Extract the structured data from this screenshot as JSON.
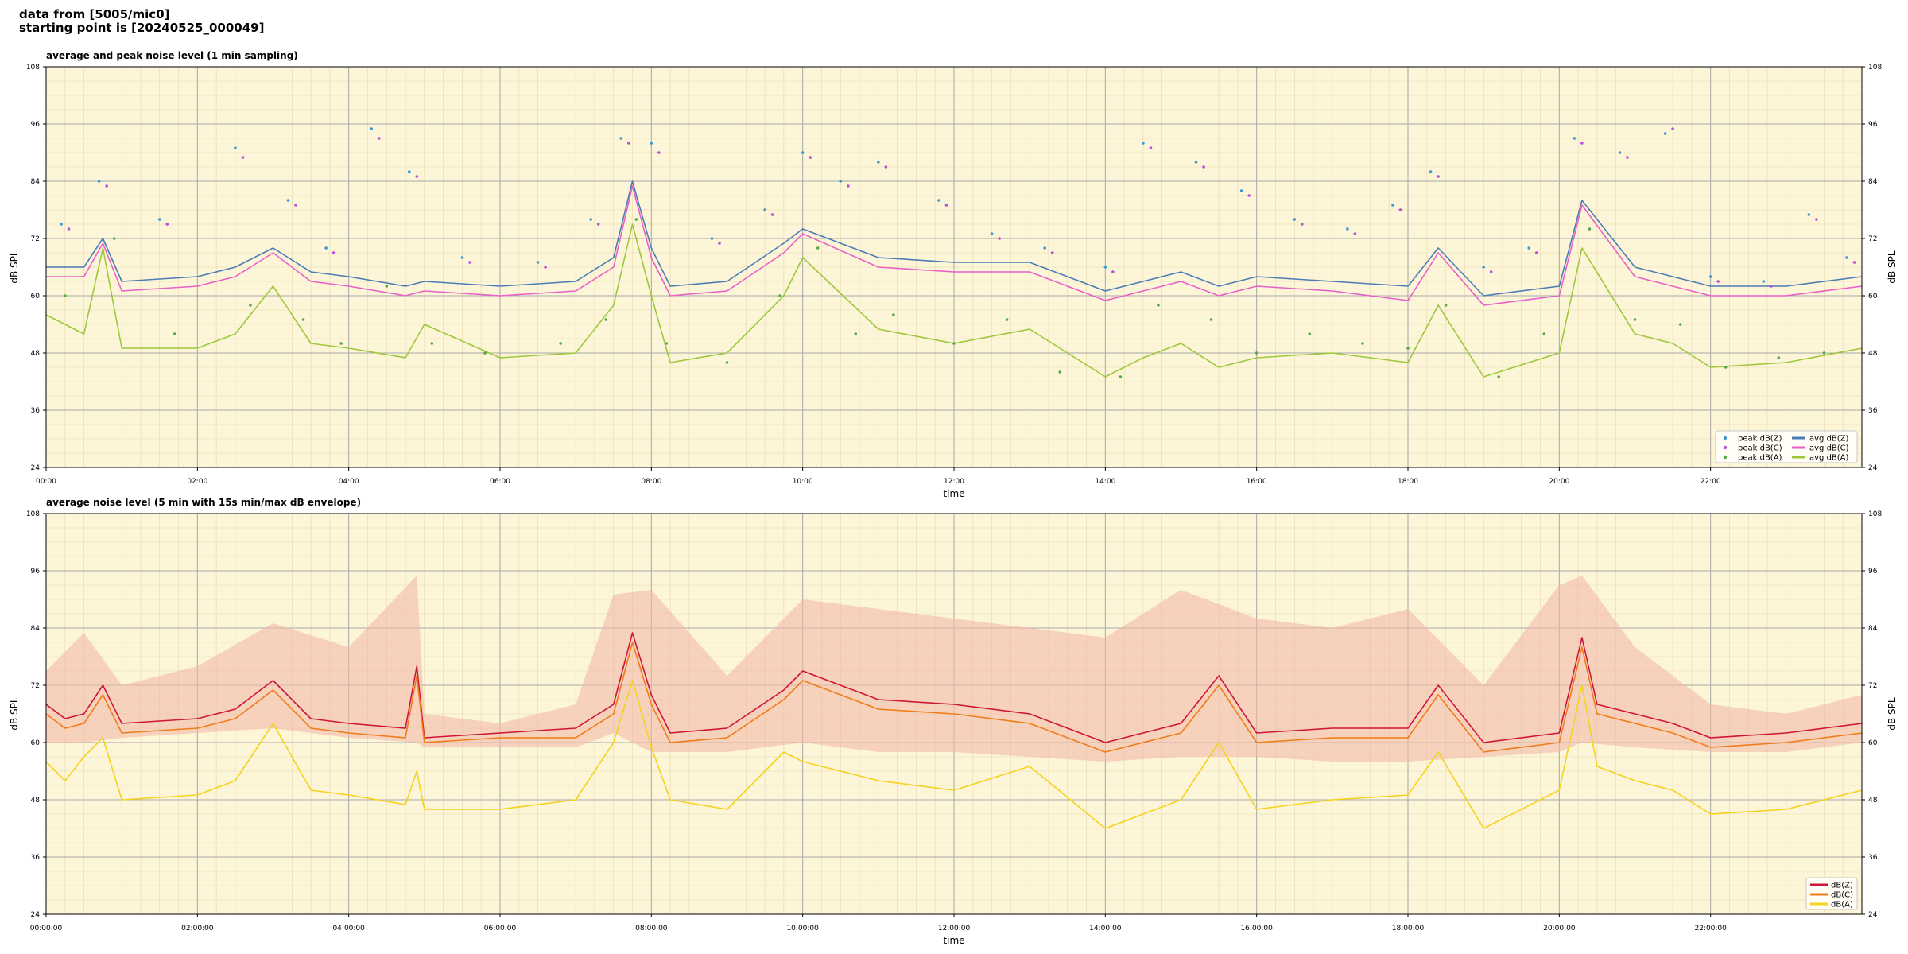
{
  "header": {
    "line1": "data from [5005/mic0]",
    "line2": "starting point is [20240525_000049]"
  },
  "chart_data": [
    {
      "type": "scatter+line",
      "title": "average and peak noise level (1 min sampling)",
      "xlabel": "time",
      "ylabel": "dB SPL",
      "ylabel_right": "dB SPL",
      "xlim_hours": [
        0,
        24
      ],
      "ylim": [
        24,
        108
      ],
      "yticks": [
        24,
        36,
        48,
        60,
        72,
        84,
        96,
        108
      ],
      "xticks": [
        "00:00",
        "02:00",
        "04:00",
        "06:00",
        "08:00",
        "10:00",
        "12:00",
        "14:00",
        "16:00",
        "18:00",
        "20:00",
        "22:00"
      ],
      "grid": true,
      "background": "#fdf5d8",
      "legend_placement": "lower-right",
      "legend": [
        "peak dB(Z)",
        "peak dB(C)",
        "peak dB(A)",
        "avg dB(Z)",
        "avg dB(C)",
        "avg dB(A)"
      ],
      "series": [
        {
          "name": "avg dB(Z)",
          "kind": "line",
          "color": "#4a7db5",
          "hours": [
            0,
            0.5,
            0.75,
            1,
            2,
            2.5,
            3,
            3.5,
            4,
            4.75,
            5,
            6,
            7,
            7.5,
            7.75,
            8,
            8.25,
            9,
            9.75,
            10,
            11,
            12,
            13,
            14,
            14.5,
            15,
            15.5,
            16,
            17,
            18,
            18.4,
            19,
            20,
            20.3,
            21,
            21.5,
            22,
            23,
            24
          ],
          "values": [
            66,
            66,
            72,
            63,
            64,
            66,
            70,
            65,
            64,
            62,
            63,
            62,
            63,
            68,
            84,
            70,
            62,
            63,
            71,
            74,
            68,
            67,
            67,
            61,
            63,
            65,
            62,
            64,
            63,
            62,
            70,
            60,
            62,
            80,
            66,
            64,
            62,
            62,
            64
          ]
        },
        {
          "name": "avg dB(C)",
          "kind": "line",
          "color": "#e860c8",
          "hours": [
            0,
            0.5,
            0.75,
            1,
            2,
            2.5,
            3,
            3.5,
            4,
            4.75,
            5,
            6,
            7,
            7.5,
            7.75,
            8,
            8.25,
            9,
            9.75,
            10,
            11,
            12,
            13,
            14,
            14.5,
            15,
            15.5,
            16,
            17,
            18,
            18.4,
            19,
            20,
            20.3,
            21,
            21.5,
            22,
            23,
            24
          ],
          "values": [
            64,
            64,
            71,
            61,
            62,
            64,
            69,
            63,
            62,
            60,
            61,
            60,
            61,
            66,
            83,
            68,
            60,
            61,
            69,
            73,
            66,
            65,
            65,
            59,
            61,
            63,
            60,
            62,
            61,
            59,
            69,
            58,
            60,
            79,
            64,
            62,
            60,
            60,
            62
          ]
        },
        {
          "name": "avg dB(A)",
          "kind": "line",
          "color": "#9cc83a",
          "hours": [
            0,
            0.5,
            0.75,
            1,
            2,
            2.5,
            3,
            3.5,
            4,
            4.75,
            5,
            6,
            7,
            7.5,
            7.75,
            8,
            8.25,
            9,
            9.75,
            10,
            11,
            12,
            13,
            14,
            14.5,
            15,
            15.5,
            16,
            17,
            18,
            18.4,
            19,
            20,
            20.3,
            21,
            21.5,
            22,
            23,
            24
          ],
          "values": [
            56,
            52,
            70,
            49,
            49,
            52,
            62,
            50,
            49,
            47,
            54,
            47,
            48,
            58,
            75,
            60,
            46,
            48,
            60,
            68,
            53,
            50,
            53,
            43,
            47,
            50,
            45,
            47,
            48,
            46,
            58,
            43,
            48,
            70,
            52,
            50,
            45,
            46,
            49
          ]
        },
        {
          "name": "peak dB(Z)",
          "kind": "scatter",
          "color": "#3a9bd4",
          "hours": [
            0.2,
            0.7,
            1.5,
            2.5,
            3.2,
            3.7,
            4.3,
            4.8,
            5.5,
            6.5,
            7.2,
            7.6,
            8.0,
            8.8,
            9.5,
            10.0,
            10.5,
            11.0,
            11.8,
            12.5,
            13.2,
            14.0,
            14.5,
            15.2,
            15.8,
            16.5,
            17.2,
            17.8,
            18.3,
            19.0,
            19.6,
            20.2,
            20.8,
            21.4,
            22.0,
            22.7,
            23.3,
            23.8
          ],
          "values": [
            75,
            84,
            76,
            91,
            80,
            70,
            95,
            86,
            68,
            67,
            76,
            93,
            92,
            72,
            78,
            90,
            84,
            88,
            80,
            73,
            70,
            66,
            92,
            88,
            82,
            76,
            74,
            79,
            86,
            66,
            70,
            93,
            90,
            94,
            64,
            63,
            77,
            68
          ]
        },
        {
          "name": "peak dB(C)",
          "kind": "scatter",
          "color": "#b84fd8",
          "hours": [
            0.3,
            0.8,
            1.6,
            2.6,
            3.3,
            3.8,
            4.4,
            4.9,
            5.6,
            6.6,
            7.3,
            7.7,
            8.1,
            8.9,
            9.6,
            10.1,
            10.6,
            11.1,
            11.9,
            12.6,
            13.3,
            14.1,
            14.6,
            15.3,
            15.9,
            16.6,
            17.3,
            17.9,
            18.4,
            19.1,
            19.7,
            20.3,
            20.9,
            21.5,
            22.1,
            22.8,
            23.4,
            23.9
          ],
          "values": [
            74,
            83,
            75,
            89,
            79,
            69,
            93,
            85,
            67,
            66,
            75,
            92,
            90,
            71,
            77,
            89,
            83,
            87,
            79,
            72,
            69,
            65,
            91,
            87,
            81,
            75,
            73,
            78,
            85,
            65,
            69,
            92,
            89,
            95,
            63,
            62,
            76,
            67
          ]
        },
        {
          "name": "peak dB(A)",
          "kind": "scatter",
          "color": "#5aa845",
          "hours": [
            0.25,
            0.9,
            1.7,
            2.7,
            3.4,
            3.9,
            4.5,
            5.1,
            5.8,
            6.8,
            7.4,
            7.8,
            8.2,
            9.0,
            9.7,
            10.2,
            10.7,
            11.2,
            12.0,
            12.7,
            13.4,
            14.2,
            14.7,
            15.4,
            16.0,
            16.7,
            17.4,
            18.0,
            18.5,
            19.2,
            19.8,
            20.4,
            21.0,
            21.6,
            22.2,
            22.9,
            23.5
          ],
          "values": [
            60,
            72,
            52,
            58,
            55,
            50,
            62,
            50,
            48,
            50,
            55,
            76,
            50,
            46,
            60,
            70,
            52,
            56,
            50,
            55,
            44,
            43,
            58,
            55,
            48,
            52,
            50,
            49,
            58,
            43,
            52,
            74,
            55,
            54,
            45,
            47,
            48
          ]
        }
      ]
    },
    {
      "type": "line+envelope",
      "title": "average noise level (5 min with 15s min/max dB envelope)",
      "xlabel": "time",
      "ylabel": "dB SPL",
      "ylabel_right": "dB SPL",
      "xlim_hours": [
        0,
        24
      ],
      "ylim": [
        24,
        108
      ],
      "yticks": [
        24,
        36,
        48,
        60,
        72,
        84,
        96,
        108
      ],
      "xticks": [
        "00:00:00",
        "02:00:00",
        "04:00:00",
        "06:00:00",
        "08:00:00",
        "10:00:00",
        "12:00:00",
        "14:00:00",
        "16:00:00",
        "18:00:00",
        "20:00:00",
        "22:00:00"
      ],
      "grid": true,
      "background": "#fdf5d8",
      "legend_placement": "lower-right",
      "legend": [
        "dB(Z)",
        "dB(C)",
        "dB(A)"
      ],
      "envelope": {
        "color": "#f2b9a8",
        "hours": [
          0,
          0.5,
          1,
          2,
          3,
          4,
          4.9,
          5,
          6,
          7,
          7.5,
          8,
          9,
          10,
          11,
          12,
          13,
          14,
          15,
          16,
          17,
          18,
          19,
          20,
          20.3,
          21,
          22,
          23,
          24
        ],
        "min": [
          60,
          60,
          61,
          62,
          63,
          61,
          60,
          59,
          59,
          59,
          62,
          58,
          58,
          60,
          58,
          58,
          57,
          56,
          57,
          57,
          56,
          56,
          57,
          58,
          60,
          59,
          58,
          58,
          60
        ],
        "max": [
          75,
          83,
          72,
          76,
          85,
          80,
          95,
          66,
          64,
          68,
          91,
          92,
          74,
          90,
          88,
          86,
          84,
          82,
          92,
          86,
          84,
          88,
          72,
          93,
          95,
          80,
          68,
          66,
          70
        ]
      },
      "series": [
        {
          "name": "dB(Z)",
          "kind": "line",
          "color": "#d0153a",
          "hours": [
            0,
            0.25,
            0.5,
            0.75,
            1,
            2,
            2.5,
            3,
            3.5,
            4,
            4.75,
            4.9,
            5,
            6,
            7,
            7.5,
            7.75,
            8,
            8.25,
            9,
            9.75,
            10,
            11,
            12,
            13,
            14,
            15,
            15.5,
            16,
            17,
            18,
            18.4,
            19,
            20,
            20.3,
            20.5,
            21,
            21.5,
            22,
            23,
            24
          ],
          "values": [
            68,
            65,
            66,
            72,
            64,
            65,
            67,
            73,
            65,
            64,
            63,
            76,
            61,
            62,
            63,
            68,
            83,
            70,
            62,
            63,
            71,
            75,
            69,
            68,
            66,
            60,
            64,
            74,
            62,
            63,
            63,
            72,
            60,
            62,
            82,
            68,
            66,
            64,
            61,
            62,
            64
          ]
        },
        {
          "name": "dB(C)",
          "kind": "line",
          "color": "#f07c18",
          "hours": [
            0,
            0.25,
            0.5,
            0.75,
            1,
            2,
            2.5,
            3,
            3.5,
            4,
            4.75,
            4.9,
            5,
            6,
            7,
            7.5,
            7.75,
            8,
            8.25,
            9,
            9.75,
            10,
            11,
            12,
            13,
            14,
            15,
            15.5,
            16,
            17,
            18,
            18.4,
            19,
            20,
            20.3,
            20.5,
            21,
            21.5,
            22,
            23,
            24
          ],
          "values": [
            66,
            63,
            64,
            70,
            62,
            63,
            65,
            71,
            63,
            62,
            61,
            74,
            60,
            61,
            61,
            66,
            81,
            68,
            60,
            61,
            69,
            73,
            67,
            66,
            64,
            58,
            62,
            72,
            60,
            61,
            61,
            70,
            58,
            60,
            80,
            66,
            64,
            62,
            59,
            60,
            62
          ]
        },
        {
          "name": "dB(A)",
          "kind": "line",
          "color": "#f5d21e",
          "hours": [
            0,
            0.25,
            0.5,
            0.75,
            1,
            2,
            2.5,
            3,
            3.5,
            4,
            4.75,
            4.9,
            5,
            6,
            7,
            7.5,
            7.75,
            8,
            8.25,
            9,
            9.75,
            10,
            11,
            12,
            13,
            14,
            15,
            15.5,
            16,
            17,
            18,
            18.4,
            19,
            20,
            20.3,
            20.5,
            21,
            21.5,
            22,
            23,
            24
          ],
          "values": [
            56,
            52,
            57,
            61,
            48,
            49,
            52,
            64,
            50,
            49,
            47,
            54,
            46,
            46,
            48,
            60,
            73,
            59,
            48,
            46,
            58,
            56,
            52,
            50,
            55,
            42,
            48,
            60,
            46,
            48,
            49,
            58,
            42,
            50,
            72,
            55,
            52,
            50,
            45,
            46,
            50
          ]
        }
      ]
    }
  ]
}
